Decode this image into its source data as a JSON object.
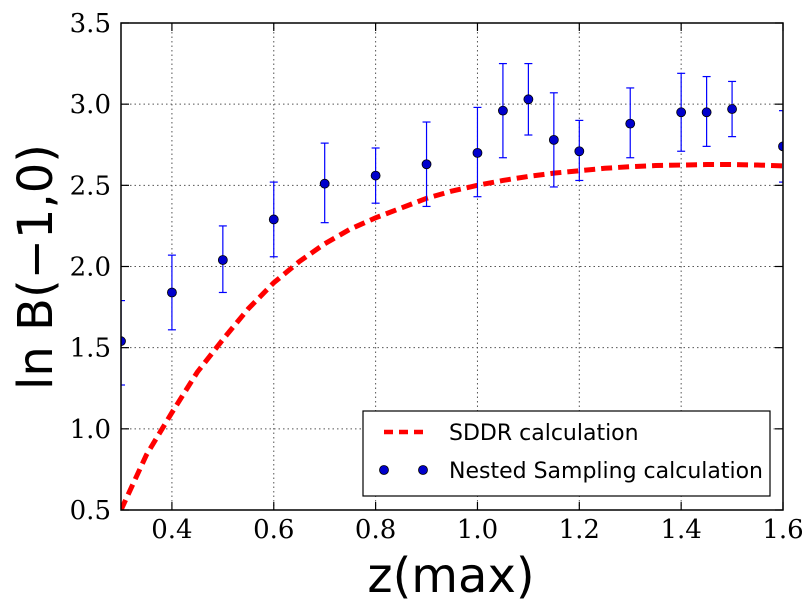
{
  "chart_data": {
    "type": "scatter",
    "title": "",
    "xlabel": "z(max)",
    "ylabel": "ln B(−1,0)",
    "xlim": [
      0.3,
      1.6
    ],
    "ylim": [
      0.5,
      3.5
    ],
    "x_ticks": [
      "0.4",
      "0.6",
      "0.8",
      "1.0",
      "1.2",
      "1.4",
      "1.6"
    ],
    "x_tick_values": [
      0.4,
      0.6,
      0.8,
      1.0,
      1.2,
      1.4,
      1.6
    ],
    "y_ticks": [
      "0.5",
      "1.0",
      "1.5",
      "2.0",
      "2.5",
      "3.0",
      "3.5"
    ],
    "y_tick_values": [
      0.5,
      1.0,
      1.5,
      2.0,
      2.5,
      3.0,
      3.5
    ],
    "grid": true,
    "legend_position": "lower-right",
    "series": [
      {
        "name": "SDDR calculation",
        "style": "dashed-line",
        "color": "#ff0000",
        "x": [
          0.3,
          0.35,
          0.4,
          0.45,
          0.5,
          0.55,
          0.6,
          0.65,
          0.7,
          0.75,
          0.8,
          0.85,
          0.9,
          0.95,
          1.0,
          1.05,
          1.1,
          1.15,
          1.2,
          1.25,
          1.3,
          1.35,
          1.4,
          1.45,
          1.5,
          1.55,
          1.6
        ],
        "y": [
          0.5,
          0.84,
          1.1,
          1.35,
          1.55,
          1.74,
          1.9,
          2.03,
          2.14,
          2.23,
          2.3,
          2.36,
          2.42,
          2.465,
          2.5,
          2.53,
          2.555,
          2.575,
          2.59,
          2.605,
          2.615,
          2.622,
          2.625,
          2.628,
          2.628,
          2.625,
          2.62
        ]
      },
      {
        "name": "Nested Sampling calculation",
        "style": "points-with-errorbars",
        "color": "#0000ff",
        "x": [
          0.3,
          0.4,
          0.5,
          0.6,
          0.7,
          0.8,
          0.9,
          1.0,
          1.05,
          1.1,
          1.15,
          1.2,
          1.3,
          1.4,
          1.45,
          1.5,
          1.6
        ],
        "y": [
          1.54,
          1.84,
          2.04,
          2.29,
          2.51,
          2.56,
          2.63,
          2.7,
          2.96,
          3.03,
          2.78,
          2.71,
          2.88,
          2.95,
          2.95,
          2.97,
          2.74
        ],
        "yerr_low": [
          1.27,
          1.61,
          1.84,
          2.06,
          2.27,
          2.39,
          2.37,
          2.43,
          2.67,
          2.81,
          2.49,
          2.53,
          2.67,
          2.71,
          2.74,
          2.8,
          2.52
        ],
        "yerr_high": [
          1.79,
          2.07,
          2.25,
          2.52,
          2.76,
          2.73,
          2.89,
          2.98,
          3.25,
          3.25,
          3.07,
          2.9,
          3.1,
          3.19,
          3.17,
          3.14,
          2.96
        ]
      }
    ]
  }
}
